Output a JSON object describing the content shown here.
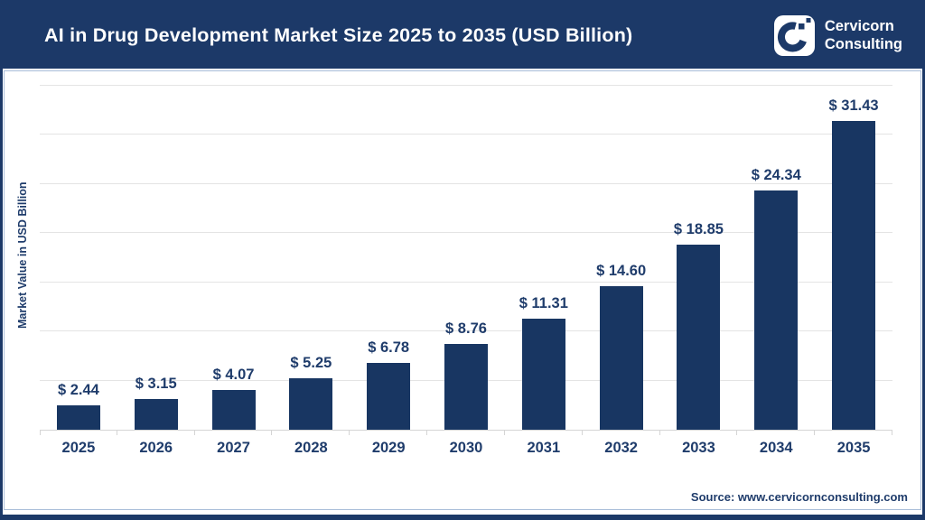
{
  "colors": {
    "navy": "#1c3968",
    "bar": "#183662",
    "label_text": "#1f3c6b",
    "gridline": "#e4e4e4",
    "axis_line": "#d5d5d5",
    "frame_border": "#a9bdd9",
    "header_text": "#ffffff"
  },
  "header": {
    "title": "AI in Drug Development Market Size 2025 to 2035 (USD Billion)",
    "logo": {
      "line1": "Cervicorn",
      "line2": "Consulting"
    }
  },
  "chart_data": {
    "type": "bar",
    "title": "AI in Drug Development Market Size 2025 to 2035 (USD Billion)",
    "categories": [
      "2025",
      "2026",
      "2027",
      "2028",
      "2029",
      "2030",
      "2031",
      "2032",
      "2033",
      "2034",
      "2035"
    ],
    "values": [
      2.44,
      3.15,
      4.07,
      5.25,
      6.78,
      8.76,
      11.31,
      14.6,
      18.85,
      24.34,
      31.43
    ],
    "value_labels": [
      "$ 2.44",
      "$ 3.15",
      "$ 4.07",
      "$ 5.25",
      "$ 6.78",
      "$ 8.76",
      "$ 11.31",
      "$ 14.60",
      "$ 18.85",
      "$ 24.34",
      "$ 31.43"
    ],
    "xlabel": "",
    "ylabel": "Market Value in USD Billion",
    "ylim": [
      0,
      35
    ],
    "gridline_step": 5,
    "grid": "horizontal-only",
    "y_tick_labels_visible": false,
    "legend": "none"
  },
  "footer": {
    "source": "Source: www.cervicornconsulting.com"
  }
}
